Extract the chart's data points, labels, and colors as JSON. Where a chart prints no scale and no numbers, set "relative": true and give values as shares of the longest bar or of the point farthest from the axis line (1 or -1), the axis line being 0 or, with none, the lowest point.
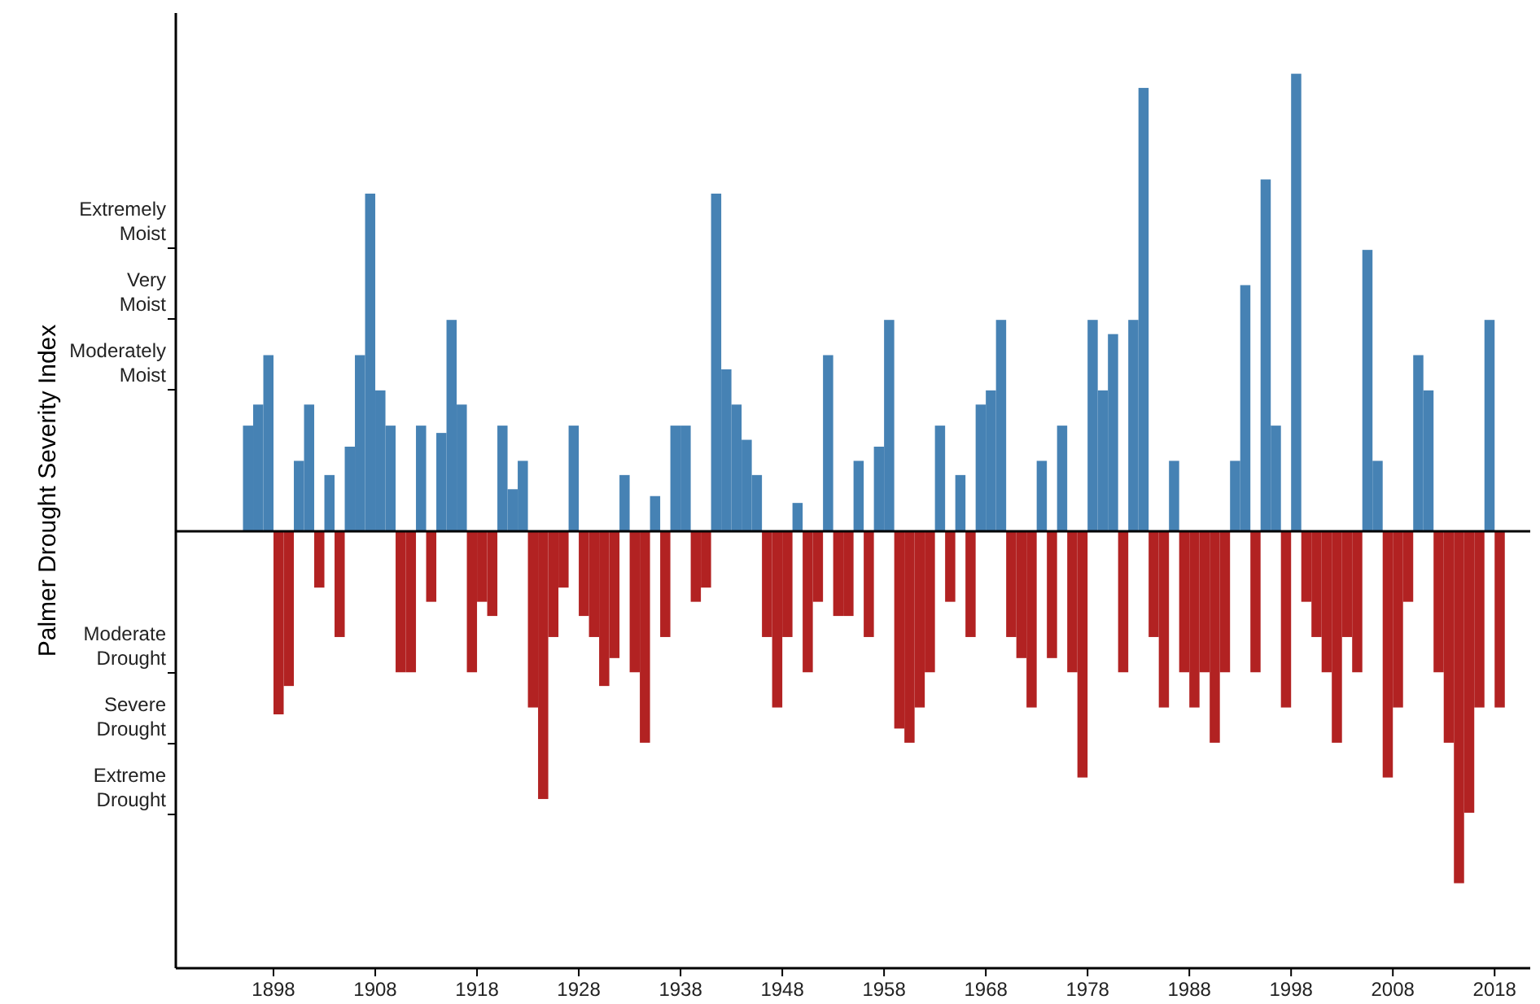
{
  "chart_data": {
    "type": "bar",
    "ylabel": "Palmer Drought Severity Index",
    "relative": true,
    "x": [
      1895,
      1896,
      1897,
      1898,
      1899,
      1900,
      1901,
      1902,
      1903,
      1904,
      1905,
      1906,
      1907,
      1908,
      1909,
      1910,
      1911,
      1912,
      1913,
      1914,
      1915,
      1916,
      1917,
      1918,
      1919,
      1920,
      1921,
      1922,
      1923,
      1924,
      1925,
      1926,
      1927,
      1928,
      1929,
      1930,
      1931,
      1932,
      1933,
      1934,
      1935,
      1936,
      1937,
      1938,
      1939,
      1940,
      1941,
      1942,
      1943,
      1944,
      1945,
      1946,
      1947,
      1948,
      1949,
      1950,
      1951,
      1952,
      1953,
      1954,
      1955,
      1956,
      1957,
      1958,
      1959,
      1960,
      1961,
      1962,
      1963,
      1964,
      1965,
      1966,
      1967,
      1968,
      1969,
      1970,
      1971,
      1972,
      1973,
      1974,
      1975,
      1976,
      1977,
      1978,
      1979,
      1980,
      1981,
      1982,
      1983,
      1984,
      1985,
      1986,
      1987,
      1988,
      1989,
      1990,
      1991,
      1992,
      1993,
      1994,
      1995,
      1996,
      1997,
      1998,
      1999,
      2000,
      2001,
      2002,
      2003,
      2004,
      2005,
      2006,
      2007,
      2008,
      2009,
      2010,
      2011,
      2012,
      2013,
      2014,
      2015,
      2016,
      2017,
      2018
    ],
    "series": [
      {
        "color": "#4682b4",
        "values": [
          0.231,
          0.277,
          0.385,
          null,
          null,
          0.154,
          0.277,
          null,
          0.123,
          null,
          0.185,
          0.385,
          0.738,
          0.308,
          0.231,
          null,
          null,
          0.231,
          null,
          0.215,
          0.462,
          0.277,
          null,
          null,
          null,
          0.231,
          0.092,
          0.154,
          null,
          null,
          null,
          null,
          0.231,
          null,
          null,
          null,
          null,
          0.123,
          null,
          null,
          0.077,
          null,
          0.231,
          0.231,
          null,
          null,
          0.738,
          0.354,
          0.277,
          0.2,
          0.123,
          null,
          null,
          null,
          0.062,
          null,
          null,
          0.385,
          null,
          null,
          0.154,
          null,
          0.185,
          0.462,
          null,
          null,
          null,
          null,
          0.231,
          null,
          0.123,
          null,
          0.277,
          0.308,
          0.462,
          null,
          null,
          null,
          0.154,
          null,
          0.231,
          null,
          null,
          0.462,
          0.308,
          0.431,
          null,
          0.462,
          0.969,
          null,
          null,
          0.154,
          null,
          null,
          null,
          null,
          null,
          0.154,
          0.538,
          null,
          0.769,
          0.231,
          null,
          1,
          null,
          null,
          null,
          null,
          null,
          null,
          0.615,
          0.154,
          null,
          null,
          null,
          0.385,
          0.308,
          null,
          null,
          null,
          null,
          null,
          0.462,
          null
        ]
      },
      {
        "color": "#b22222",
        "values": [
          null,
          null,
          null,
          -0.4,
          -0.338,
          null,
          null,
          -0.123,
          null,
          -0.231,
          null,
          null,
          null,
          null,
          null,
          -0.308,
          -0.308,
          null,
          -0.154,
          null,
          null,
          null,
          -0.308,
          -0.154,
          -0.185,
          null,
          null,
          null,
          -0.385,
          -0.585,
          -0.231,
          -0.123,
          null,
          -0.185,
          -0.231,
          -0.338,
          -0.277,
          null,
          -0.308,
          -0.462,
          null,
          -0.231,
          null,
          null,
          -0.154,
          -0.123,
          null,
          null,
          null,
          null,
          null,
          -0.231,
          -0.385,
          -0.231,
          null,
          -0.308,
          -0.154,
          null,
          -0.185,
          -0.185,
          null,
          -0.231,
          null,
          null,
          -0.431,
          -0.462,
          -0.385,
          -0.308,
          null,
          -0.154,
          null,
          -0.231,
          null,
          null,
          null,
          -0.231,
          -0.277,
          -0.385,
          null,
          -0.277,
          null,
          -0.308,
          -0.538,
          null,
          null,
          null,
          -0.308,
          null,
          null,
          -0.231,
          -0.385,
          null,
          -0.308,
          -0.385,
          -0.308,
          -0.462,
          -0.308,
          null,
          null,
          -0.308,
          null,
          null,
          -0.385,
          null,
          -0.154,
          -0.231,
          -0.308,
          -0.462,
          -0.231,
          -0.308,
          null,
          null,
          -0.538,
          -0.385,
          -0.154,
          null,
          null,
          -0.308,
          -0.462,
          -0.769,
          -0.615,
          -0.385,
          null,
          -0.385
        ]
      }
    ],
    "xlim": [
      1888.4,
      2021.5
    ],
    "xticks": [
      1898,
      1908,
      1918,
      1928,
      1938,
      1948,
      1958,
      1968,
      1978,
      1988,
      1998,
      2008,
      2018
    ],
    "annotations": [
      "Extremely Moist",
      "Very Moist",
      "Moderately Moist",
      "Moderate Drought",
      "Severe Drought",
      "Extreme Drought"
    ],
    "grid": false
  }
}
